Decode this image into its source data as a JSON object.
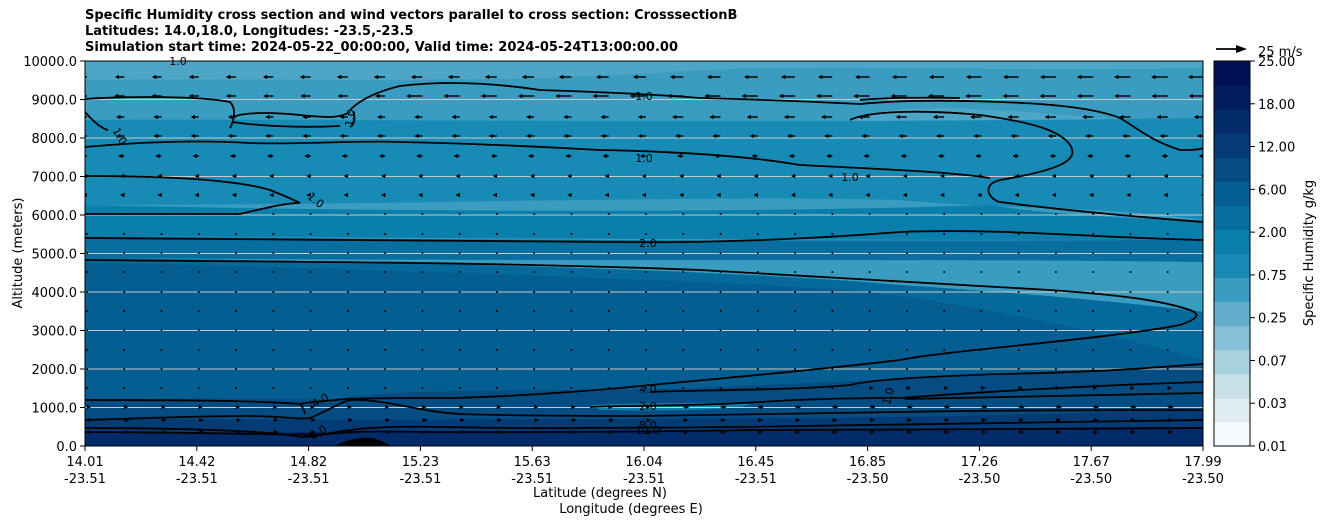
{
  "chart_data": {
    "type": "heatmap",
    "subtype": "filled-contour cross section with wind vectors",
    "title_lines": [
      "Specific Humidity cross section and wind vectors parallel to cross section: CrosssectionB",
      "Latitudes: 14.0,18.0, Longitudes: -23.5,-23.5",
      "Simulation start time: 2024-05-22_00:00:00, Valid time: 2024-05-24T13:00:00.00"
    ],
    "ylabel": "Altitude (meters)",
    "xlabel_lat": "Latitude (degrees N)",
    "xlabel_lon": "Longitude (degrees E)",
    "ylim": [
      0,
      10000
    ],
    "yticks": [
      0,
      1000,
      2000,
      3000,
      4000,
      5000,
      6000,
      7000,
      8000,
      9000,
      10000
    ],
    "ytick_labels": [
      "0.0",
      "1000.0",
      "2000.0",
      "3000.0",
      "4000.0",
      "5000.0",
      "6000.0",
      "7000.0",
      "8000.0",
      "9000.0",
      "10000.0"
    ],
    "xticks_lat": [
      "14.01",
      "14.42",
      "14.82",
      "15.23",
      "15.63",
      "16.04",
      "16.45",
      "16.85",
      "17.26",
      "17.67",
      "17.99"
    ],
    "xticks_lon": [
      "-23.51",
      "-23.51",
      "-23.51",
      "-23.51",
      "-23.51",
      "-23.51",
      "-23.51",
      "-23.50",
      "-23.50",
      "-23.50",
      "-23.50"
    ],
    "colorbar": {
      "label": "Specific Humidity g/kg",
      "tick_labels": [
        "0.01",
        "0.03",
        "0.07",
        "0.25",
        "0.75",
        "2.00",
        "6.00",
        "12.00",
        "18.00",
        "25.00"
      ],
      "colors": [
        "#f7fbff",
        "#deebf2",
        "#c6dfe9",
        "#a8d1e0",
        "#86c0d6",
        "#62aecb",
        "#3a9cc0",
        "#178bb6",
        "#0a7fab",
        "#066f9f",
        "#055e91",
        "#054c83",
        "#033b76",
        "#022b6a",
        "#021d5e",
        "#011055"
      ]
    },
    "contour_labels": [
      "1.0",
      "1.0",
      "1.0",
      "1.0",
      "1.0",
      "1.0",
      "1.0",
      "2.0",
      "4.0",
      "4.0",
      "8.0",
      "2.0",
      "8.0",
      "12.0",
      "1.0"
    ],
    "humidity_layers_gkg": [
      {
        "alt_m": [
          0,
          500
        ],
        "value": 12.0
      },
      {
        "alt_m": [
          500,
          1000
        ],
        "value": 8.0
      },
      {
        "alt_m": [
          1000,
          4800
        ],
        "value": 4.0
      },
      {
        "alt_m": [
          4800,
          5400
        ],
        "value": 2.0
      },
      {
        "alt_m": [
          5400,
          7000
        ],
        "value": 1.5
      },
      {
        "alt_m": [
          7000,
          10000
        ],
        "value": 1.0
      }
    ],
    "wind_reference": {
      "label": "25 m/s",
      "value": 25
    }
  }
}
